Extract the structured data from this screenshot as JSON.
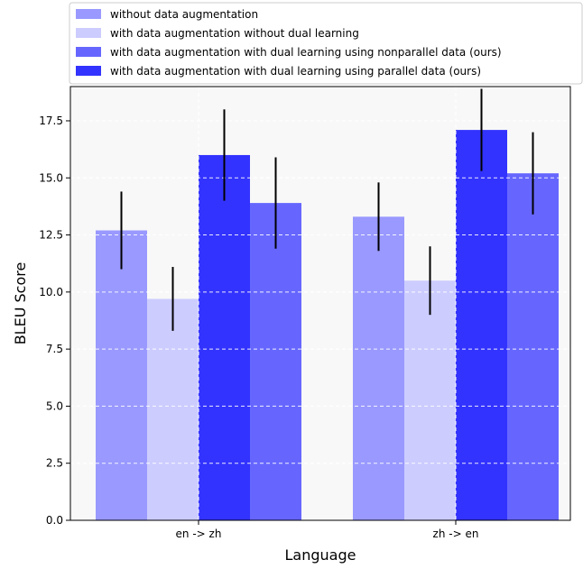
{
  "chart_data": {
    "type": "bar",
    "title": "",
    "xlabel": "Language",
    "ylabel": "BLEU Score",
    "ylim": [
      0,
      19
    ],
    "yticks": [
      0.0,
      2.5,
      5.0,
      7.5,
      10.0,
      12.5,
      15.0,
      17.5
    ],
    "ytick_labels": [
      "0.0",
      "2.5",
      "5.0",
      "7.5",
      "10.0",
      "12.5",
      "15.0",
      "17.5"
    ],
    "grid": "on",
    "legend_position": "top",
    "categories": [
      "en -> zh",
      "zh -> en"
    ],
    "series": [
      {
        "name": "without data augmentation",
        "color": "#9999ff",
        "values": [
          12.7,
          13.3
        ],
        "errors": [
          1.7,
          1.5
        ]
      },
      {
        "name": "with data augmentation without dual learning",
        "color": "#ccccff",
        "values": [
          9.7,
          10.5
        ],
        "errors": [
          1.4,
          1.5
        ]
      },
      {
        "name": "with data augmentation with dual learning using parallel data (ours)",
        "color": "#3333ff",
        "values": [
          16.0,
          17.1
        ],
        "errors": [
          2.0,
          1.8
        ]
      },
      {
        "name": "with data augmentation with dual learning using nonparallel data (ours)",
        "color": "#6666ff",
        "values": [
          13.9,
          15.2
        ],
        "errors": [
          2.0,
          1.8
        ]
      }
    ],
    "legend_order": [
      0,
      1,
      3,
      2
    ]
  }
}
